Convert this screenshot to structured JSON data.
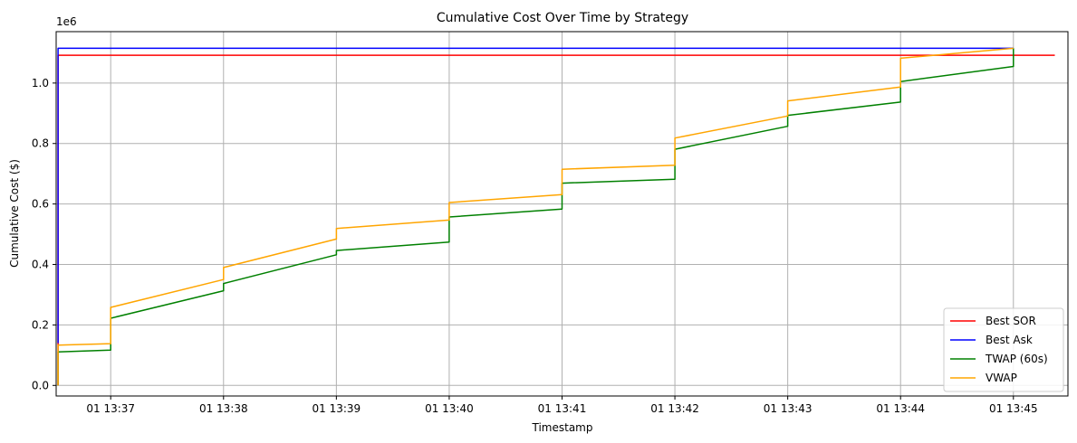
{
  "chart_data": {
    "type": "line",
    "title": "Cumulative Cost Over Time by Strategy",
    "xlabel": "Timestamp",
    "ylabel": "Cumulative Cost ($)",
    "y_scale_note": "1e6",
    "grid": true,
    "legend_position": "lower right",
    "x_ticks": [
      "01 13:37",
      "01 13:38",
      "01 13:39",
      "01 13:40",
      "01 13:41",
      "01 13:42",
      "01 13:43",
      "01 13:44",
      "01 13:45"
    ],
    "y_ticks": [
      "0.0",
      "0.2",
      "0.4",
      "0.6",
      "0.8",
      "1.0"
    ],
    "xlim": [
      "13:36:31",
      "13:45:29"
    ],
    "ylim": [
      -35000,
      1170000
    ],
    "series": [
      {
        "name": "Best SOR",
        "color": "#ff0000",
        "points": [
          [
            "13:36:32",
            0
          ],
          [
            "13:36:32",
            1092000
          ],
          [
            "13:45:22",
            1092000
          ]
        ]
      },
      {
        "name": "Best Ask",
        "color": "#0000ff",
        "points": [
          [
            "13:36:32",
            140000
          ],
          [
            "13:36:32",
            1115000
          ],
          [
            "13:45:00",
            1115000
          ]
        ]
      },
      {
        "name": "TWAP (60s)",
        "color": "#008000",
        "points": [
          [
            "13:36:32",
            0
          ],
          [
            "13:36:32",
            111000
          ],
          [
            "13:37:00",
            117000
          ],
          [
            "13:37:00",
            222000
          ],
          [
            "13:38:00",
            313000
          ],
          [
            "13:38:00",
            337000
          ],
          [
            "13:39:00",
            432000
          ],
          [
            "13:39:00",
            446000
          ],
          [
            "13:40:00",
            474000
          ],
          [
            "13:40:00",
            557000
          ],
          [
            "13:41:00",
            583000
          ],
          [
            "13:41:00",
            669000
          ],
          [
            "13:42:00",
            682000
          ],
          [
            "13:42:00",
            781000
          ],
          [
            "13:43:00",
            857000
          ],
          [
            "13:43:00",
            893000
          ],
          [
            "13:44:00",
            937000
          ],
          [
            "13:44:00",
            1005000
          ],
          [
            "13:45:00",
            1055000
          ],
          [
            "13:45:00",
            1115000
          ]
        ]
      },
      {
        "name": "VWAP",
        "color": "#ffa500",
        "points": [
          [
            "13:36:32",
            0
          ],
          [
            "13:36:32",
            133000
          ],
          [
            "13:37:00",
            138000
          ],
          [
            "13:37:00",
            258000
          ],
          [
            "13:38:00",
            350000
          ],
          [
            "13:38:00",
            390000
          ],
          [
            "13:39:00",
            484000
          ],
          [
            "13:39:00",
            519000
          ],
          [
            "13:40:00",
            547000
          ],
          [
            "13:40:00",
            605000
          ],
          [
            "13:41:00",
            631000
          ],
          [
            "13:41:00",
            715000
          ],
          [
            "13:42:00",
            728000
          ],
          [
            "13:42:00",
            818000
          ],
          [
            "13:43:00",
            891000
          ],
          [
            "13:43:00",
            941000
          ],
          [
            "13:44:00",
            987000
          ],
          [
            "13:44:00",
            1082000
          ],
          [
            "13:45:00",
            1115000
          ],
          [
            "13:45:00",
            1115000
          ]
        ]
      }
    ]
  }
}
